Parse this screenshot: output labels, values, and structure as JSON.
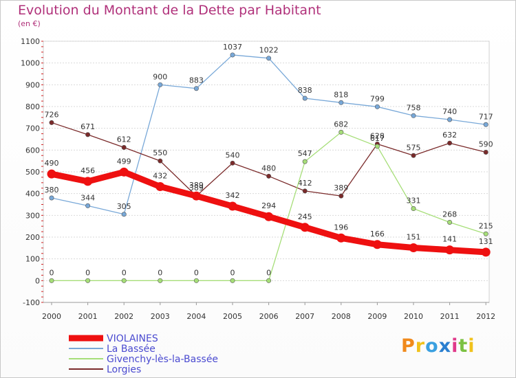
{
  "header": {
    "title": "Evolution du Montant de la Dette par Habitant",
    "unit": "(en €)"
  },
  "logo": {
    "text": "Proxiti",
    "colors": [
      "#f08a1c",
      "#f0c21c",
      "#3aa0e0",
      "#2b7fd0",
      "#e03a8a",
      "#7bc142",
      "#f0c21c"
    ]
  },
  "chart_data": {
    "type": "line",
    "title": "Evolution du Montant de la Dette par Habitant",
    "subtitle": "(en €)",
    "x": [
      "2000",
      "2001",
      "2002",
      "2003",
      "2004",
      "2005",
      "2006",
      "2007",
      "2008",
      "2009",
      "2010",
      "2011",
      "2012"
    ],
    "ylim": [
      -100,
      1100
    ],
    "yticks": [
      -100,
      0,
      100,
      200,
      300,
      400,
      500,
      600,
      700,
      800,
      900,
      1000,
      1100
    ],
    "grid": "horizontal",
    "legend_position": "bottom-left",
    "series": [
      {
        "name": "VIOLAINES",
        "color": "#ee1010",
        "values": [
          490,
          456,
          499,
          432,
          389,
          342,
          294,
          245,
          196,
          166,
          151,
          141,
          131
        ],
        "labels": [
          "490",
          "456",
          "499",
          "432",
          "389",
          "342",
          "294",
          "245",
          "196",
          "166",
          "151",
          "141",
          "131"
        ]
      },
      {
        "name": "La Bassée",
        "color": "#78a8d8",
        "values": [
          380,
          344,
          305,
          900,
          883,
          1037,
          1022,
          838,
          818,
          799,
          758,
          740,
          717
        ],
        "labels": [
          "380",
          "344",
          "305",
          "900",
          "883",
          "1037",
          "1022",
          "838",
          "818",
          "799",
          "758",
          "740",
          "717"
        ]
      },
      {
        "name": "Givenchy-lès-la-Bassée",
        "color": "#a6de78",
        "values": [
          0,
          0,
          0,
          0,
          0,
          0,
          0,
          547,
          682,
          617,
          331,
          268,
          215
        ],
        "labels": [
          "0",
          "0",
          "0",
          "0",
          "0",
          "0",
          "0",
          "547",
          "682",
          "617",
          "331",
          "268",
          "215"
        ]
      },
      {
        "name": "Lorgies",
        "color": "#7a2a2a",
        "values": [
          726,
          671,
          612,
          550,
          389,
          540,
          480,
          412,
          389,
          628,
          575,
          632,
          590
        ],
        "labels": [
          "726",
          "671",
          "612",
          "550",
          "389",
          "540",
          "480",
          "412",
          "389",
          "628",
          "575",
          "632",
          "590"
        ]
      }
    ]
  }
}
